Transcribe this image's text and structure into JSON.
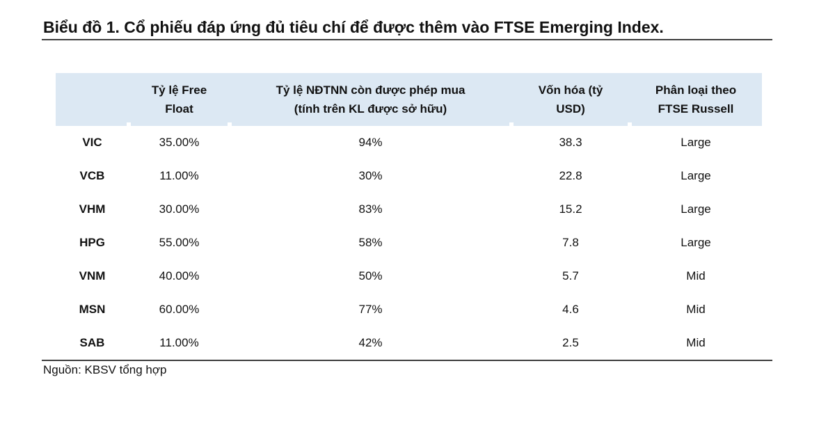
{
  "chart_data": {
    "type": "table",
    "title": "Biểu đồ 1. Cổ phiếu đáp ứng đủ tiêu chí để được thêm vào FTSE Emerging Index.",
    "columns": [
      "",
      "Tỷ lệ Free Float",
      "Tỷ lệ NĐTNN còn được phép mua (tính trên KL được sở hữu)",
      "Vốn hóa (tỷ USD)",
      "Phân loại theo FTSE Russell"
    ],
    "rows": [
      [
        "VIC",
        "35.00%",
        "94%",
        "38.3",
        "Large"
      ],
      [
        "VCB",
        "11.00%",
        "30%",
        "22.8",
        "Large"
      ],
      [
        "VHM",
        "30.00%",
        "83%",
        "15.2",
        "Large"
      ],
      [
        "HPG",
        "55.00%",
        "58%",
        "7.8",
        "Large"
      ],
      [
        "VNM",
        "40.00%",
        "50%",
        "5.7",
        "Mid"
      ],
      [
        "MSN",
        "60.00%",
        "77%",
        "4.6",
        "Mid"
      ],
      [
        "SAB",
        "11.00%",
        "42%",
        "2.5",
        "Mid"
      ]
    ],
    "source": "Nguồn: KBSV tổng hợp",
    "legend": "none",
    "grid": "off"
  },
  "display": {
    "header_lines": [
      "",
      "Tỷ lệ Free\nFloat",
      "Tỷ lệ NĐTNN còn được phép mua\n(tính trên KL được sở hữu)",
      "Vốn hóa (tỷ\nUSD)",
      "Phân loại theo\nFTSE Russell"
    ]
  },
  "colors": {
    "header_bg": "#dce8f3",
    "text": "#111111",
    "rule": "#3d3d3d"
  }
}
